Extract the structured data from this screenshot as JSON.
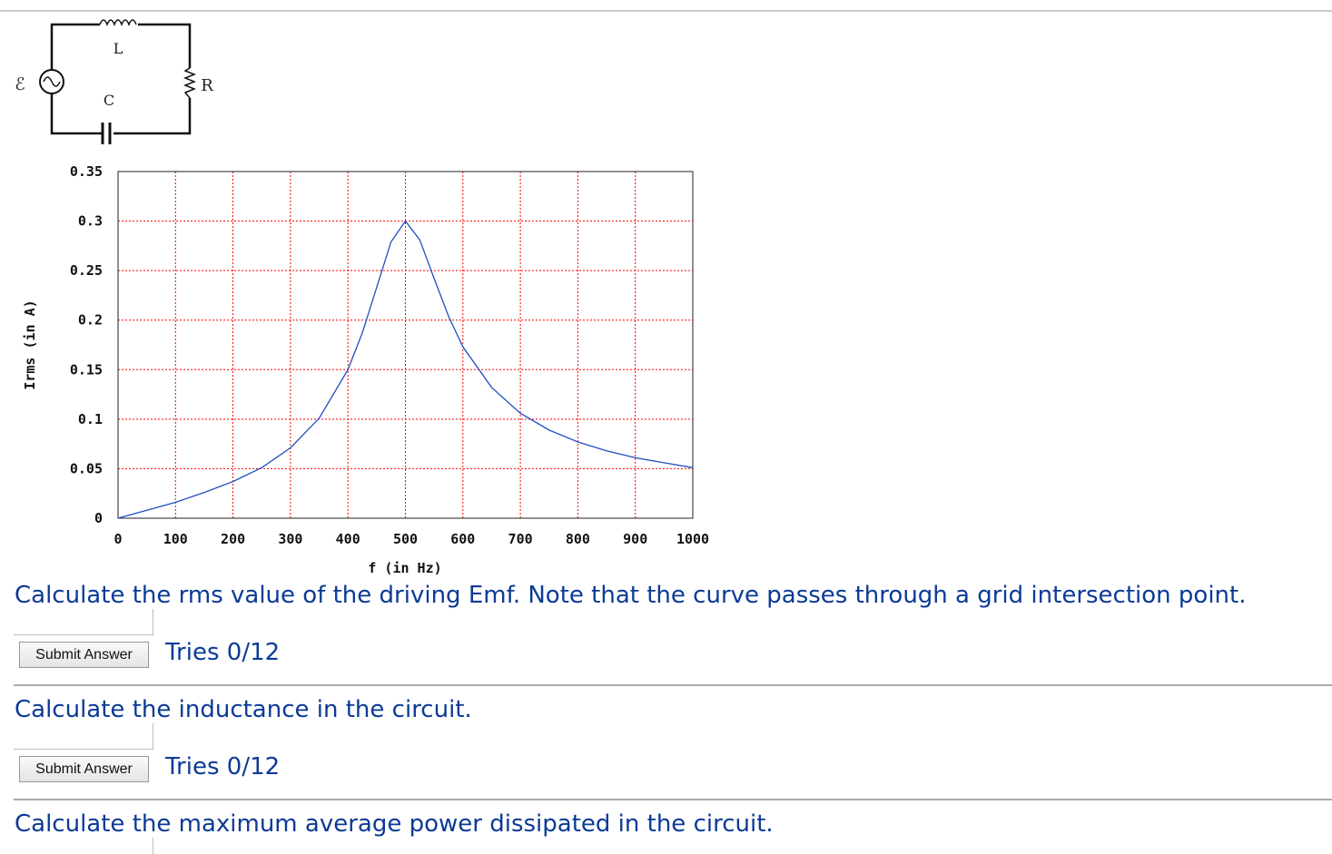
{
  "circuit": {
    "emf": "ℰ",
    "inductor": "L",
    "capacitor": "C",
    "resistor": "R"
  },
  "chart_data": {
    "type": "line",
    "x": [
      0,
      50,
      100,
      150,
      200,
      250,
      300,
      350,
      400,
      425,
      450,
      475,
      500,
      525,
      550,
      575,
      600,
      650,
      700,
      750,
      800,
      850,
      900,
      950,
      1000
    ],
    "series": [
      {
        "color": "#1f4fbf",
        "values": [
          0,
          0.008,
          0.016,
          0.026,
          0.037,
          0.051,
          0.071,
          0.101,
          0.15,
          0.187,
          0.233,
          0.279,
          0.3,
          0.281,
          0.242,
          0.204,
          0.173,
          0.132,
          0.106,
          0.089,
          0.077,
          0.068,
          0.061,
          0.056,
          0.051
        ]
      }
    ],
    "xlabel": "f (in Hz)",
    "ylabel": "Irms (in A)",
    "xlim": [
      0,
      1000
    ],
    "ylim": [
      0,
      0.35
    ],
    "xticks": [
      0,
      100,
      200,
      300,
      400,
      500,
      600,
      700,
      800,
      900,
      1000
    ],
    "yticks": [
      0,
      0.05,
      0.1,
      0.15,
      0.2,
      0.25,
      0.3,
      0.35
    ],
    "grid": true,
    "grid_color": "#ff0000"
  },
  "questions": [
    {
      "text": "Calculate the rms value of the driving Emf. Note that the curve passes through a grid intersection point.",
      "button": "Submit Answer",
      "tries": "Tries 0/12"
    },
    {
      "text": "Calculate the inductance in the circuit.",
      "button": "Submit Answer",
      "tries": "Tries 0/12"
    },
    {
      "text": "Calculate the maximum average power dissipated in the circuit."
    }
  ]
}
